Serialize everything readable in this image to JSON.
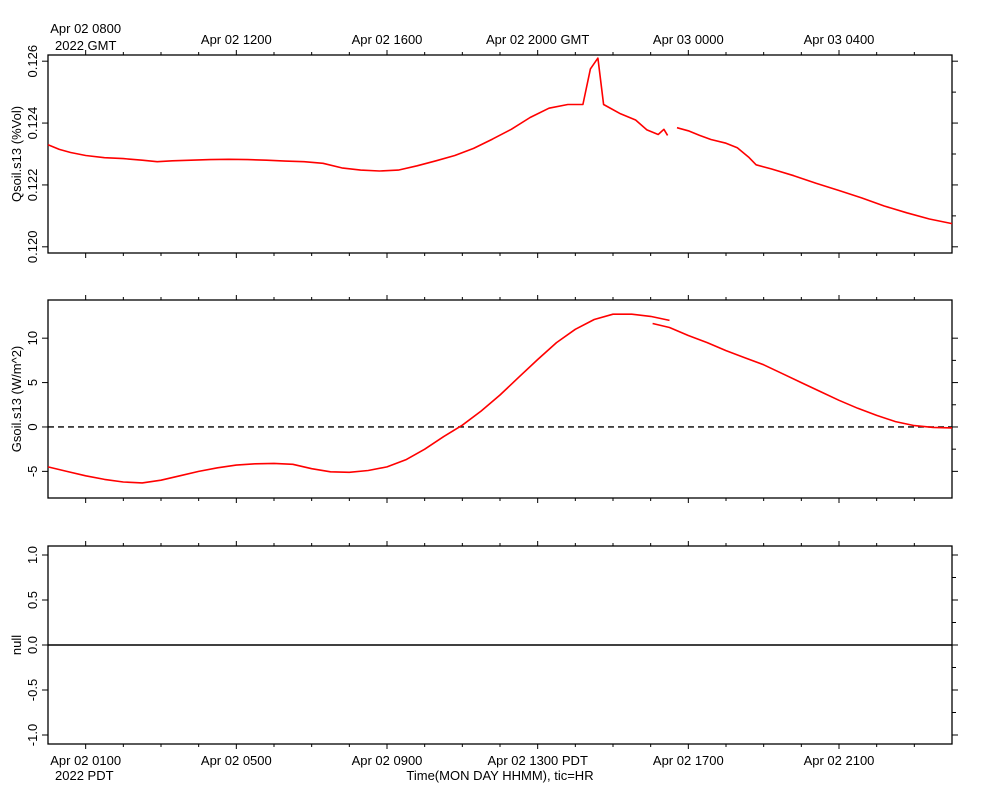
{
  "top_axis": {
    "year_label": "2022 GMT",
    "ticks": [
      {
        "hour": 1,
        "label": "Apr 02 0800"
      },
      {
        "hour": 5,
        "label": "Apr 02 1200"
      },
      {
        "hour": 9,
        "label": "Apr 02 1600"
      },
      {
        "hour": 13,
        "label": "Apr 02 2000 GMT"
      },
      {
        "hour": 17,
        "label": "Apr 03 0000"
      },
      {
        "hour": 21,
        "label": "Apr 03 0400"
      }
    ]
  },
  "bottom_axis": {
    "year_label": "2022 PDT",
    "title": "Time(MON DAY HHMM), tic=HR",
    "ticks": [
      {
        "hour": 1,
        "label": "Apr 02 0100"
      },
      {
        "hour": 5,
        "label": "Apr 02 0500"
      },
      {
        "hour": 9,
        "label": "Apr 02 0900"
      },
      {
        "hour": 13,
        "label": "Apr 02 1300 PDT"
      },
      {
        "hour": 17,
        "label": "Apr 02 1700"
      },
      {
        "hour": 21,
        "label": "Apr 02 2100"
      }
    ]
  },
  "line_color": "#ff0000",
  "chart_data": [
    {
      "type": "line",
      "ylabel": "Qsoil.s13 (%Vol)",
      "xlim": [
        0,
        24
      ],
      "ylim": [
        0.1198,
        0.1262
      ],
      "yticks": [
        0.12,
        0.122,
        0.124,
        0.126
      ],
      "ytick_labels": [
        "0.120",
        "0.122",
        "0.124",
        "0.126"
      ],
      "zero_line": null,
      "series": [
        {
          "segments": [
            [
              [
                0.0,
                0.1233
              ],
              [
                0.3,
                0.12315
              ],
              [
                0.6,
                0.12305
              ],
              [
                1.0,
                0.12295
              ],
              [
                1.5,
                0.12288
              ],
              [
                2.0,
                0.12285
              ],
              [
                2.5,
                0.1228
              ],
              [
                2.9,
                0.12275
              ],
              [
                3.3,
                0.12278
              ],
              [
                3.8,
                0.1228
              ],
              [
                4.3,
                0.12282
              ],
              [
                4.8,
                0.12283
              ],
              [
                5.3,
                0.12282
              ],
              [
                5.8,
                0.1228
              ],
              [
                6.3,
                0.12277
              ],
              [
                6.8,
                0.12275
              ],
              [
                7.3,
                0.1227
              ],
              [
                7.8,
                0.12255
              ],
              [
                8.3,
                0.12248
              ],
              [
                8.8,
                0.12245
              ],
              [
                9.3,
                0.12248
              ],
              [
                9.8,
                0.12262
              ],
              [
                10.3,
                0.12278
              ],
              [
                10.8,
                0.12295
              ],
              [
                11.3,
                0.12318
              ],
              [
                11.8,
                0.12348
              ],
              [
                12.3,
                0.1238
              ],
              [
                12.8,
                0.12418
              ],
              [
                13.3,
                0.12448
              ],
              [
                13.8,
                0.1246
              ],
              [
                14.2,
                0.1246
              ],
              [
                14.4,
                0.12575
              ],
              [
                14.6,
                0.1261
              ],
              [
                14.75,
                0.1246
              ],
              [
                15.2,
                0.1243
              ],
              [
                15.6,
                0.1241
              ],
              [
                15.9,
                0.12378
              ],
              [
                16.2,
                0.12363
              ],
              [
                16.35,
                0.1238
              ],
              [
                16.45,
                0.1236
              ]
            ],
            [
              [
                16.7,
                0.12385
              ],
              [
                17.0,
                0.12375
              ],
              [
                17.3,
                0.1236
              ],
              [
                17.6,
                0.12347
              ],
              [
                18.0,
                0.12335
              ],
              [
                18.3,
                0.1232
              ],
              [
                18.6,
                0.1229
              ],
              [
                18.8,
                0.12265
              ],
              [
                19.2,
                0.12252
              ],
              [
                19.8,
                0.1223
              ],
              [
                20.4,
                0.12205
              ],
              [
                21.0,
                0.12182
              ],
              [
                21.6,
                0.12158
              ],
              [
                22.2,
                0.12132
              ],
              [
                22.8,
                0.1211
              ],
              [
                23.4,
                0.1209
              ],
              [
                24.0,
                0.12075
              ]
            ]
          ]
        }
      ]
    },
    {
      "type": "line",
      "ylabel": "Gsoil.s13 (W/m^2)",
      "xlim": [
        0,
        24
      ],
      "ylim": [
        -8,
        14.3
      ],
      "yticks": [
        -5,
        0,
        5,
        10
      ],
      "ytick_labels": [
        "-5",
        "0",
        "5",
        "10"
      ],
      "zero_line": "dashed",
      "series": [
        {
          "segments": [
            [
              [
                0.0,
                -4.5
              ],
              [
                0.5,
                -5.0
              ],
              [
                1.0,
                -5.5
              ],
              [
                1.5,
                -5.9
              ],
              [
                2.0,
                -6.2
              ],
              [
                2.5,
                -6.3
              ],
              [
                3.0,
                -6.0
              ],
              [
                3.5,
                -5.5
              ],
              [
                4.0,
                -5.0
              ],
              [
                4.5,
                -4.6
              ],
              [
                5.0,
                -4.3
              ],
              [
                5.5,
                -4.15
              ],
              [
                6.0,
                -4.1
              ],
              [
                6.5,
                -4.2
              ],
              [
                7.0,
                -4.7
              ],
              [
                7.5,
                -5.05
              ],
              [
                8.0,
                -5.1
              ],
              [
                8.5,
                -4.9
              ],
              [
                9.0,
                -4.5
              ],
              [
                9.5,
                -3.7
              ],
              [
                10.0,
                -2.5
              ],
              [
                10.5,
                -1.1
              ],
              [
                11.0,
                0.2
              ],
              [
                11.5,
                1.8
              ],
              [
                12.0,
                3.6
              ],
              [
                12.5,
                5.6
              ],
              [
                13.0,
                7.6
              ],
              [
                13.5,
                9.5
              ],
              [
                14.0,
                11.0
              ],
              [
                14.5,
                12.1
              ],
              [
                15.0,
                12.7
              ],
              [
                15.5,
                12.7
              ],
              [
                16.0,
                12.45
              ],
              [
                16.5,
                12.0
              ]
            ],
            [
              [
                16.05,
                11.65
              ],
              [
                16.5,
                11.2
              ],
              [
                17.0,
                10.3
              ],
              [
                17.5,
                9.5
              ],
              [
                18.0,
                8.6
              ],
              [
                18.5,
                7.8
              ],
              [
                19.0,
                7.0
              ],
              [
                19.5,
                6.0
              ],
              [
                20.0,
                5.0
              ],
              [
                20.5,
                4.0
              ],
              [
                21.0,
                3.0
              ],
              [
                21.5,
                2.1
              ],
              [
                22.0,
                1.3
              ],
              [
                22.5,
                0.6
              ],
              [
                23.0,
                0.15
              ],
              [
                23.5,
                -0.05
              ],
              [
                24.0,
                -0.1
              ]
            ]
          ]
        }
      ]
    },
    {
      "type": "line",
      "ylabel": "null",
      "xlim": [
        0,
        24
      ],
      "ylim": [
        -1.1,
        1.1
      ],
      "yticks": [
        -1.0,
        -0.5,
        0.0,
        0.5,
        1.0
      ],
      "ytick_labels": [
        "-1.0",
        "-0.5",
        "0.0",
        "0.5",
        "1.0"
      ],
      "zero_line": "solid",
      "series": []
    }
  ]
}
